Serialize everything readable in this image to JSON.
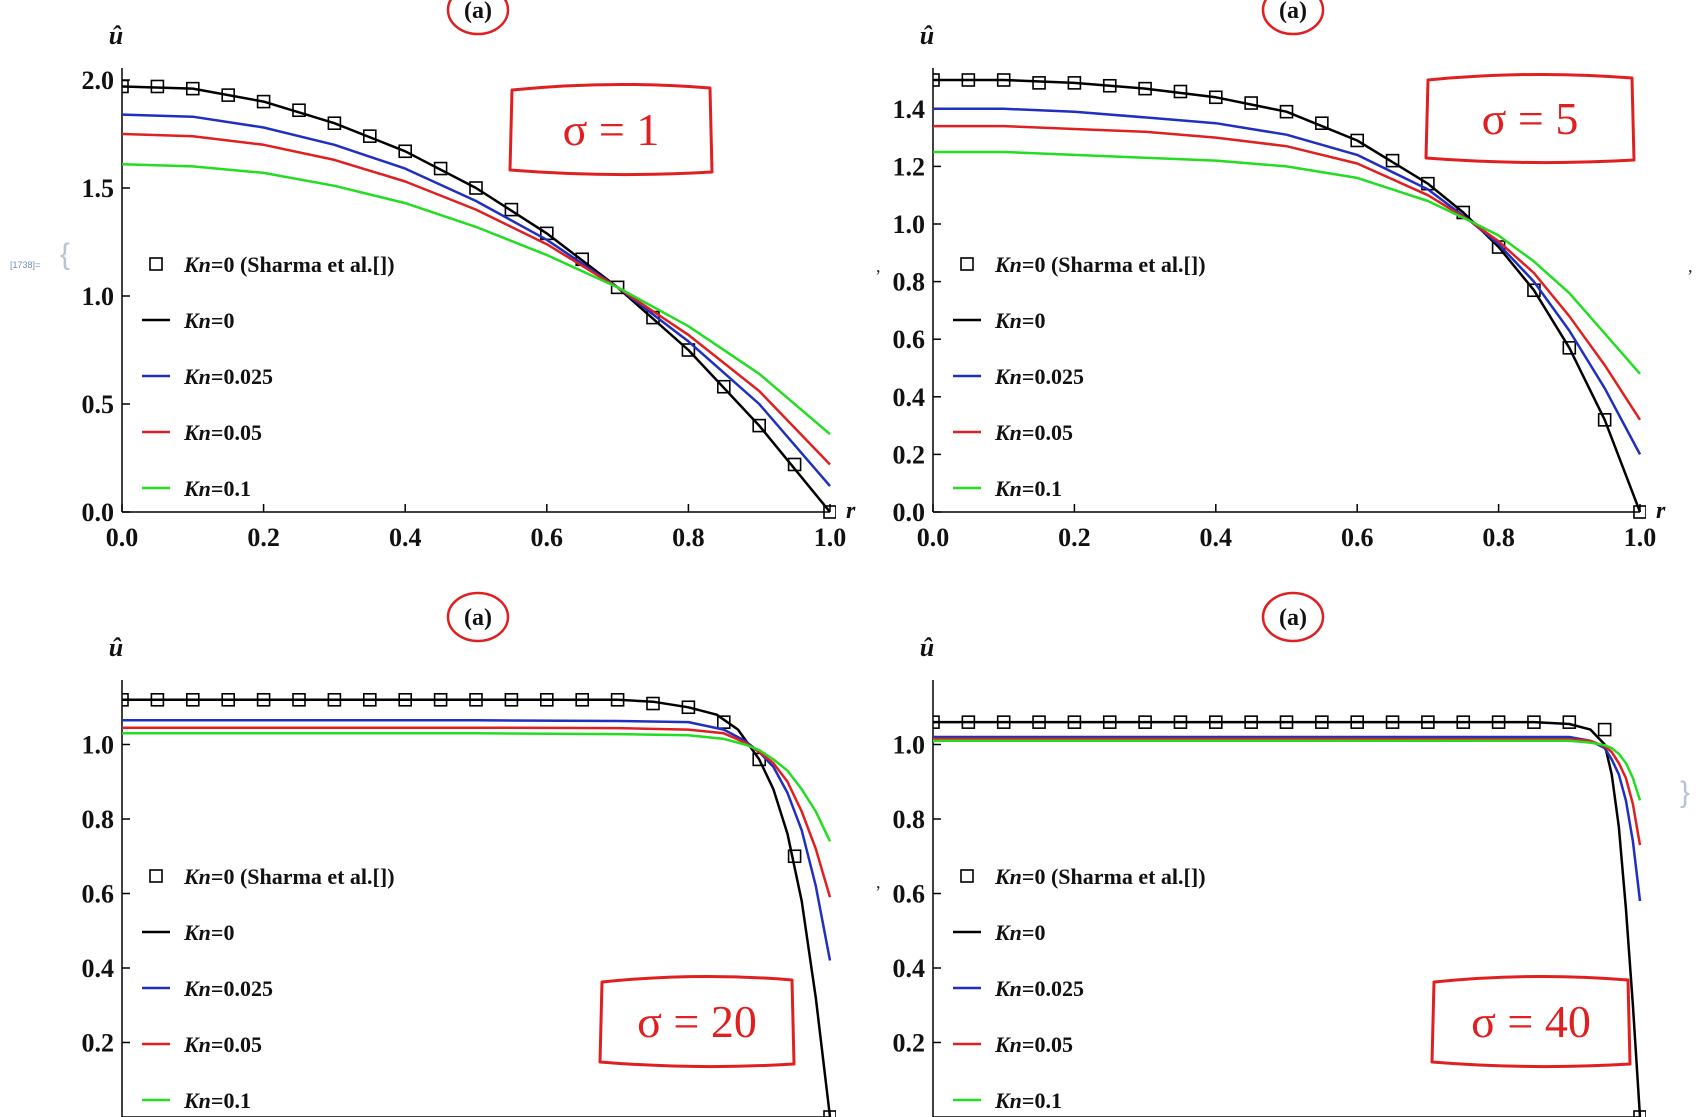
{
  "cell_label": "[1738]=",
  "chart_data": [
    {
      "type": "line",
      "title": "(a)",
      "xlabel": "r",
      "ylabel": "û",
      "xlim": [
        0,
        1
      ],
      "ylim": [
        0,
        2.0
      ],
      "xticks": [
        "0.0",
        "0.2",
        "0.4",
        "0.6",
        "0.8",
        "1.0"
      ],
      "yticks": [
        "0.0",
        "0.5",
        "1.0",
        "1.5",
        "2.0"
      ],
      "legend_position": "left-middle",
      "annotation": "σ = 1",
      "series": [
        {
          "name": "Kn=0 (Sharma et al.[])",
          "kind": "markers",
          "color": "#000000",
          "x": [
            0,
            0.05,
            0.1,
            0.15,
            0.2,
            0.25,
            0.3,
            0.35,
            0.4,
            0.45,
            0.5,
            0.55,
            0.6,
            0.65,
            0.7,
            0.75,
            0.8,
            0.85,
            0.9,
            0.95,
            1.0
          ],
          "y": [
            1.97,
            1.97,
            1.96,
            1.93,
            1.9,
            1.86,
            1.8,
            1.74,
            1.67,
            1.59,
            1.5,
            1.4,
            1.29,
            1.17,
            1.04,
            0.9,
            0.75,
            0.58,
            0.4,
            0.22,
            0.0
          ]
        },
        {
          "name": "Kn=0",
          "kind": "line",
          "color": "#000000",
          "x": [
            0,
            0.1,
            0.2,
            0.3,
            0.4,
            0.5,
            0.6,
            0.7,
            0.8,
            0.9,
            1.0
          ],
          "y": [
            1.97,
            1.96,
            1.9,
            1.8,
            1.67,
            1.5,
            1.29,
            1.04,
            0.75,
            0.4,
            0.0
          ]
        },
        {
          "name": "Kn=0.025",
          "kind": "line",
          "color": "#1f2fbf",
          "x": [
            0,
            0.1,
            0.2,
            0.3,
            0.4,
            0.5,
            0.6,
            0.7,
            0.8,
            0.9,
            1.0
          ],
          "y": [
            1.84,
            1.83,
            1.78,
            1.7,
            1.59,
            1.44,
            1.26,
            1.04,
            0.79,
            0.5,
            0.12
          ]
        },
        {
          "name": "Kn=0.05",
          "kind": "line",
          "color": "#e02020",
          "x": [
            0,
            0.1,
            0.2,
            0.3,
            0.4,
            0.5,
            0.6,
            0.7,
            0.8,
            0.9,
            1.0
          ],
          "y": [
            1.75,
            1.74,
            1.7,
            1.63,
            1.53,
            1.4,
            1.24,
            1.04,
            0.82,
            0.56,
            0.22
          ]
        },
        {
          "name": "Kn=0.1",
          "kind": "line",
          "color": "#22dd22",
          "x": [
            0,
            0.1,
            0.2,
            0.3,
            0.4,
            0.5,
            0.6,
            0.7,
            0.8,
            0.9,
            1.0
          ],
          "y": [
            1.61,
            1.6,
            1.57,
            1.51,
            1.43,
            1.32,
            1.19,
            1.04,
            0.86,
            0.64,
            0.36
          ]
        }
      ]
    },
    {
      "type": "line",
      "title": "(a)",
      "xlabel": "r",
      "ylabel": "û",
      "xlim": [
        0,
        1
      ],
      "ylim": [
        0,
        1.5
      ],
      "xticks": [
        "0.0",
        "0.2",
        "0.4",
        "0.6",
        "0.8",
        "1.0"
      ],
      "yticks": [
        "0.0",
        "0.2",
        "0.4",
        "0.6",
        "0.8",
        "1.0",
        "1.2",
        "1.4"
      ],
      "legend_position": "left-middle",
      "annotation": "σ = 5",
      "series": [
        {
          "name": "Kn=0 (Sharma et al.[])",
          "kind": "markers",
          "color": "#000000",
          "x": [
            0,
            0.05,
            0.1,
            0.15,
            0.2,
            0.25,
            0.3,
            0.35,
            0.4,
            0.45,
            0.5,
            0.55,
            0.6,
            0.65,
            0.7,
            0.75,
            0.8,
            0.85,
            0.9,
            0.95,
            1.0
          ],
          "y": [
            1.5,
            1.5,
            1.5,
            1.49,
            1.49,
            1.48,
            1.47,
            1.46,
            1.44,
            1.42,
            1.39,
            1.35,
            1.29,
            1.22,
            1.14,
            1.04,
            0.92,
            0.77,
            0.57,
            0.32,
            0.0
          ]
        },
        {
          "name": "Kn=0",
          "kind": "line",
          "color": "#000000",
          "x": [
            0,
            0.1,
            0.2,
            0.3,
            0.4,
            0.5,
            0.6,
            0.7,
            0.75,
            0.8,
            0.85,
            0.9,
            0.95,
            1.0
          ],
          "y": [
            1.5,
            1.5,
            1.49,
            1.47,
            1.44,
            1.39,
            1.29,
            1.14,
            1.04,
            0.92,
            0.77,
            0.57,
            0.32,
            0.0
          ]
        },
        {
          "name": "Kn=0.025",
          "kind": "line",
          "color": "#1f2fbf",
          "x": [
            0,
            0.1,
            0.2,
            0.3,
            0.4,
            0.5,
            0.6,
            0.7,
            0.76,
            0.8,
            0.85,
            0.9,
            0.95,
            1.0
          ],
          "y": [
            1.4,
            1.4,
            1.39,
            1.37,
            1.35,
            1.31,
            1.24,
            1.12,
            1.01,
            0.93,
            0.8,
            0.63,
            0.43,
            0.2
          ]
        },
        {
          "name": "Kn=0.05",
          "kind": "line",
          "color": "#e02020",
          "x": [
            0,
            0.1,
            0.2,
            0.3,
            0.4,
            0.5,
            0.6,
            0.7,
            0.76,
            0.8,
            0.85,
            0.9,
            0.95,
            1.0
          ],
          "y": [
            1.34,
            1.34,
            1.33,
            1.32,
            1.3,
            1.27,
            1.21,
            1.1,
            1.01,
            0.94,
            0.83,
            0.68,
            0.51,
            0.32
          ]
        },
        {
          "name": "Kn=0.1",
          "kind": "line",
          "color": "#22dd22",
          "x": [
            0,
            0.1,
            0.2,
            0.3,
            0.4,
            0.5,
            0.6,
            0.7,
            0.76,
            0.8,
            0.85,
            0.9,
            0.95,
            1.0
          ],
          "y": [
            1.25,
            1.25,
            1.24,
            1.23,
            1.22,
            1.2,
            1.16,
            1.08,
            1.01,
            0.96,
            0.87,
            0.76,
            0.62,
            0.48
          ]
        }
      ]
    },
    {
      "type": "line",
      "title": "(a)",
      "xlabel": "",
      "ylabel": "û",
      "xlim": [
        0,
        1
      ],
      "ylim": [
        0,
        1.1
      ],
      "xticks": [],
      "yticks": [
        "0.2",
        "0.4",
        "0.6",
        "0.8",
        "1.0"
      ],
      "legend_position": "left-bottom",
      "annotation": "σ = 20",
      "series": [
        {
          "name": "Kn=0 (Sharma et al.[])",
          "kind": "markers",
          "color": "#000000",
          "x": [
            0,
            0.05,
            0.1,
            0.15,
            0.2,
            0.25,
            0.3,
            0.35,
            0.4,
            0.45,
            0.5,
            0.55,
            0.6,
            0.65,
            0.7,
            0.75,
            0.8,
            0.85,
            0.9,
            0.95,
            1.0
          ],
          "y": [
            1.12,
            1.12,
            1.12,
            1.12,
            1.12,
            1.12,
            1.12,
            1.12,
            1.12,
            1.12,
            1.12,
            1.12,
            1.12,
            1.12,
            1.12,
            1.11,
            1.1,
            1.06,
            0.96,
            0.7,
            0.0
          ]
        },
        {
          "name": "Kn=0",
          "kind": "line",
          "color": "#000000",
          "x": [
            0,
            0.5,
            0.7,
            0.75,
            0.8,
            0.84,
            0.87,
            0.9,
            0.92,
            0.94,
            0.96,
            0.98,
            1.0
          ],
          "y": [
            1.12,
            1.12,
            1.12,
            1.115,
            1.1,
            1.08,
            1.04,
            0.96,
            0.88,
            0.76,
            0.58,
            0.32,
            0.0
          ]
        },
        {
          "name": "Kn=0.025",
          "kind": "line",
          "color": "#1f2fbf",
          "x": [
            0,
            0.5,
            0.7,
            0.8,
            0.85,
            0.88,
            0.9,
            0.92,
            0.94,
            0.96,
            0.98,
            1.0
          ],
          "y": [
            1.065,
            1.065,
            1.063,
            1.06,
            1.04,
            1.01,
            0.98,
            0.94,
            0.87,
            0.77,
            0.62,
            0.42
          ]
        },
        {
          "name": "Kn=0.05",
          "kind": "line",
          "color": "#e02020",
          "x": [
            0,
            0.5,
            0.7,
            0.8,
            0.85,
            0.88,
            0.9,
            0.92,
            0.94,
            0.96,
            0.98,
            1.0
          ],
          "y": [
            1.045,
            1.045,
            1.044,
            1.04,
            1.03,
            1.005,
            0.98,
            0.95,
            0.9,
            0.82,
            0.72,
            0.59
          ]
        },
        {
          "name": "Kn=0.1",
          "kind": "line",
          "color": "#22dd22",
          "x": [
            0,
            0.5,
            0.7,
            0.8,
            0.85,
            0.88,
            0.9,
            0.92,
            0.94,
            0.96,
            0.98,
            1.0
          ],
          "y": [
            1.03,
            1.03,
            1.028,
            1.025,
            1.015,
            1.0,
            0.985,
            0.96,
            0.93,
            0.88,
            0.82,
            0.74
          ]
        }
      ]
    },
    {
      "type": "line",
      "title": "(a)",
      "xlabel": "",
      "ylabel": "û",
      "xlim": [
        0,
        1
      ],
      "ylim": [
        0,
        1.1
      ],
      "xticks": [],
      "yticks": [
        "0.2",
        "0.4",
        "0.6",
        "0.8",
        "1.0"
      ],
      "legend_position": "left-bottom",
      "annotation": "σ = 40",
      "series": [
        {
          "name": "Kn=0 (Sharma et al.[])",
          "kind": "markers",
          "color": "#000000",
          "x": [
            0,
            0.05,
            0.1,
            0.15,
            0.2,
            0.25,
            0.3,
            0.35,
            0.4,
            0.45,
            0.5,
            0.55,
            0.6,
            0.65,
            0.7,
            0.75,
            0.8,
            0.85,
            0.9,
            0.95,
            1.0
          ],
          "y": [
            1.06,
            1.06,
            1.06,
            1.06,
            1.06,
            1.06,
            1.06,
            1.06,
            1.06,
            1.06,
            1.06,
            1.06,
            1.06,
            1.06,
            1.06,
            1.06,
            1.06,
            1.06,
            1.06,
            1.04,
            0.0
          ]
        },
        {
          "name": "Kn=0",
          "kind": "line",
          "color": "#000000",
          "x": [
            0,
            0.5,
            0.85,
            0.9,
            0.93,
            0.95,
            0.96,
            0.97,
            0.98,
            0.99,
            1.0
          ],
          "y": [
            1.06,
            1.06,
            1.06,
            1.055,
            1.04,
            1.0,
            0.92,
            0.78,
            0.56,
            0.3,
            0.0
          ]
        },
        {
          "name": "Kn=0.025",
          "kind": "line",
          "color": "#1f2fbf",
          "x": [
            0,
            0.5,
            0.9,
            0.93,
            0.95,
            0.96,
            0.97,
            0.98,
            0.99,
            1.0
          ],
          "y": [
            1.02,
            1.02,
            1.02,
            1.01,
            0.99,
            0.96,
            0.92,
            0.85,
            0.74,
            0.58
          ]
        },
        {
          "name": "Kn=0.05",
          "kind": "line",
          "color": "#e02020",
          "x": [
            0,
            0.5,
            0.9,
            0.93,
            0.95,
            0.96,
            0.97,
            0.98,
            0.99,
            1.0
          ],
          "y": [
            1.015,
            1.015,
            1.014,
            1.01,
            0.995,
            0.98,
            0.95,
            0.91,
            0.84,
            0.73
          ]
        },
        {
          "name": "Kn=0.1",
          "kind": "line",
          "color": "#22dd22",
          "x": [
            0,
            0.5,
            0.9,
            0.93,
            0.95,
            0.96,
            0.97,
            0.98,
            0.99,
            1.0
          ],
          "y": [
            1.01,
            1.01,
            1.01,
            1.005,
            0.998,
            0.99,
            0.975,
            0.95,
            0.91,
            0.85
          ]
        }
      ]
    }
  ]
}
